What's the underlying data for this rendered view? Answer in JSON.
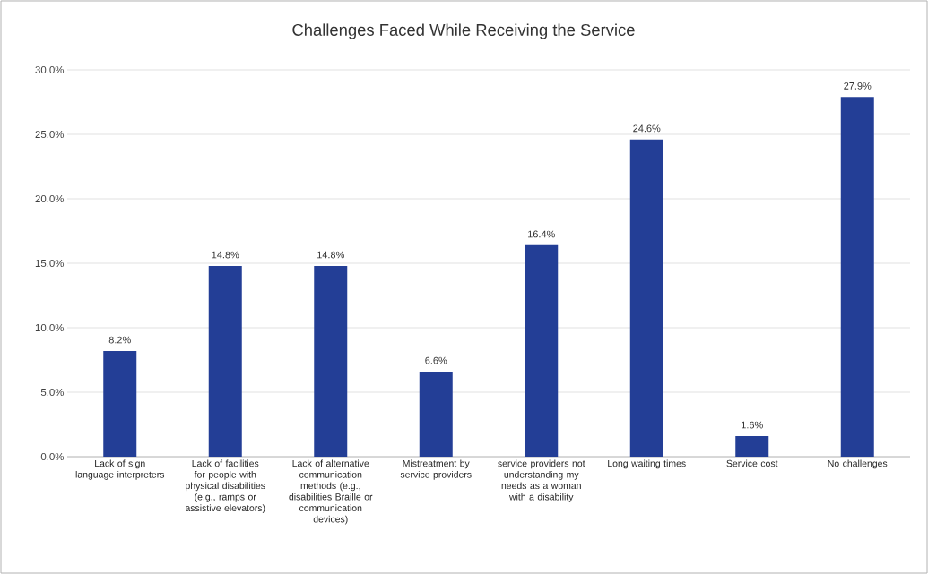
{
  "chart_data": {
    "type": "bar",
    "title": "Challenges Faced While Receiving the Service",
    "categories": [
      "Lack of sign language interpreters",
      "Lack of facilities for people with physical disabilities (e.g., ramps or assistive elevators)",
      "Lack of alternative communication methods (e.g., disabilities Braille or communication devices)",
      "Mistreatment by service providers",
      "service providers not understanding my needs as a woman with a disability",
      "Long waiting times",
      "Service cost",
      "No challenges"
    ],
    "values": [
      8.2,
      14.8,
      14.8,
      6.6,
      16.4,
      24.6,
      1.6,
      27.9
    ],
    "value_labels": [
      "8.2%",
      "14.8%",
      "14.8%",
      "6.6%",
      "16.4%",
      "24.6%",
      "1.6%",
      "27.9%"
    ],
    "color": "#233e96",
    "ylim": [
      0,
      30
    ],
    "yticks": [
      {
        "value": 0,
        "label": "0.0%"
      },
      {
        "value": 5,
        "label": "5.0%"
      },
      {
        "value": 10,
        "label": "10.0%"
      },
      {
        "value": 15,
        "label": "15.0%"
      },
      {
        "value": 20,
        "label": "20.0%"
      },
      {
        "value": 25,
        "label": "25.0%"
      },
      {
        "value": 30,
        "label": "30.0%"
      }
    ],
    "grid": "y"
  }
}
